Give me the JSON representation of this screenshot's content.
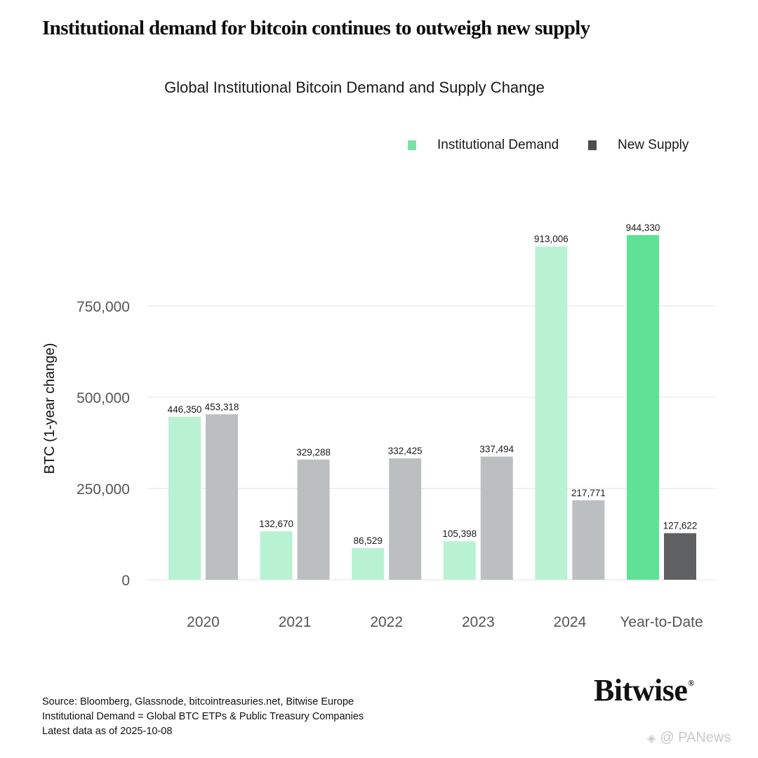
{
  "headline": "Institutional demand for bitcoin continues to outweigh new supply",
  "chart_data": {
    "type": "bar",
    "title": "Global Institutional Bitcoin Demand and Supply Change",
    "ylabel": "BTC (1-year change)",
    "xlabel": "",
    "categories": [
      "2020",
      "2021",
      "2022",
      "2023",
      "2024",
      "Year-to-Date"
    ],
    "series": [
      {
        "name": "Institutional Demand",
        "values": [
          446350,
          132670,
          86529,
          105398,
          913006,
          944330
        ],
        "labels": [
          "446,350",
          "132,670",
          "86,529",
          "105,398",
          "913,006",
          "944,330"
        ],
        "color": "#b9f2d2",
        "highlight_color": "#5fe296"
      },
      {
        "name": "New Supply",
        "values": [
          453318,
          329288,
          332425,
          337494,
          217771,
          127622
        ],
        "labels": [
          "453,318",
          "329,288",
          "332,425",
          "337,494",
          "217,771",
          "127,622"
        ],
        "color": "#bcbfbf",
        "highlight_color": "#5f6061"
      }
    ],
    "highlight_category": "Year-to-Date",
    "y_ticks": [
      0,
      250000,
      500000,
      750000
    ],
    "y_tick_labels": [
      "0",
      "250,000",
      "500,000",
      "750,000"
    ],
    "ylim": [
      0,
      1000000
    ],
    "grid": true,
    "legend_position": "top-right"
  },
  "source": {
    "line1": "Source: Bloomberg, Glassnode, bitcointreasuries.net, Bitwise Europe",
    "line2": " Institutional Demand = Global BTC ETPs & Public Treasury Companies",
    "line3": " Latest data as of 2025-10-08"
  },
  "brand": {
    "name": "Bitwise",
    "mark": "®"
  },
  "watermark": {
    "icon": "diamond-logo-icon",
    "text": "@ PANews"
  }
}
